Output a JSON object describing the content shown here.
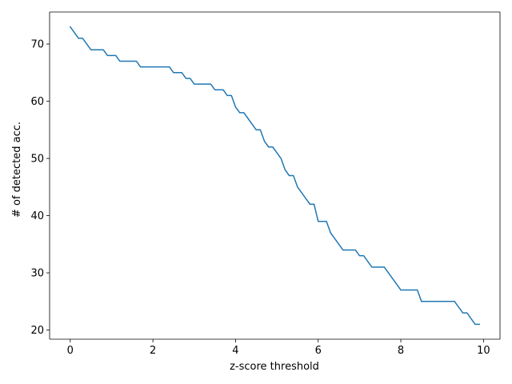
{
  "chart_data": {
    "type": "line",
    "title": "",
    "xlabel": "z-score threshold",
    "ylabel": "# of detected acc.",
    "xlim": [
      -0.5,
      10.4
    ],
    "ylim": [
      18.4,
      75.6
    ],
    "xticks": [
      0,
      2,
      4,
      6,
      8,
      10
    ],
    "yticks": [
      20,
      30,
      40,
      50,
      60,
      70
    ],
    "grid": false,
    "legend": "none",
    "colors": {
      "line": "#1f77b4",
      "axis": "#000000",
      "background": "#ffffff"
    },
    "series": [
      {
        "x": [
          0.0,
          0.1,
          0.2,
          0.3,
          0.4,
          0.5,
          0.6,
          0.7,
          0.8,
          0.9,
          1.0,
          1.1,
          1.2,
          1.3,
          1.4,
          1.5,
          1.6,
          1.7,
          1.8,
          1.9,
          2.0,
          2.1,
          2.2,
          2.3,
          2.4,
          2.5,
          2.6,
          2.7,
          2.8,
          2.9,
          3.0,
          3.1,
          3.2,
          3.3,
          3.4,
          3.5,
          3.6,
          3.7,
          3.8,
          3.9,
          4.0,
          4.1,
          4.2,
          4.3,
          4.4,
          4.5,
          4.6,
          4.7,
          4.8,
          4.9,
          5.0,
          5.1,
          5.2,
          5.3,
          5.4,
          5.5,
          5.6,
          5.7,
          5.8,
          5.9,
          6.0,
          6.1,
          6.2,
          6.3,
          6.4,
          6.5,
          6.6,
          6.7,
          6.8,
          6.9,
          7.0,
          7.1,
          7.2,
          7.3,
          7.4,
          7.5,
          7.6,
          7.7,
          7.8,
          7.9,
          8.0,
          8.1,
          8.2,
          8.3,
          8.4,
          8.5,
          8.6,
          8.7,
          8.8,
          8.9,
          9.0,
          9.1,
          9.2,
          9.3,
          9.4,
          9.5,
          9.6,
          9.7,
          9.8,
          9.9
        ],
        "values": [
          73,
          72,
          71,
          71,
          70,
          69,
          69,
          69,
          69,
          68,
          68,
          68,
          67,
          67,
          67,
          67,
          67,
          66,
          66,
          66,
          66,
          66,
          66,
          66,
          66,
          65,
          65,
          65,
          64,
          64,
          63,
          63,
          63,
          63,
          63,
          62,
          62,
          62,
          61,
          61,
          59,
          58,
          58,
          57,
          56,
          55,
          55,
          53,
          52,
          52,
          51,
          50,
          48,
          47,
          47,
          45,
          44,
          43,
          42,
          42,
          39,
          39,
          39,
          37,
          36,
          35,
          34,
          34,
          34,
          34,
          33,
          33,
          32,
          31,
          31,
          31,
          31,
          30,
          29,
          28,
          27,
          27,
          27,
          27,
          27,
          25,
          25,
          25,
          25,
          25,
          25,
          25,
          25,
          25,
          24,
          23,
          23,
          22,
          21,
          21
        ]
      }
    ]
  }
}
